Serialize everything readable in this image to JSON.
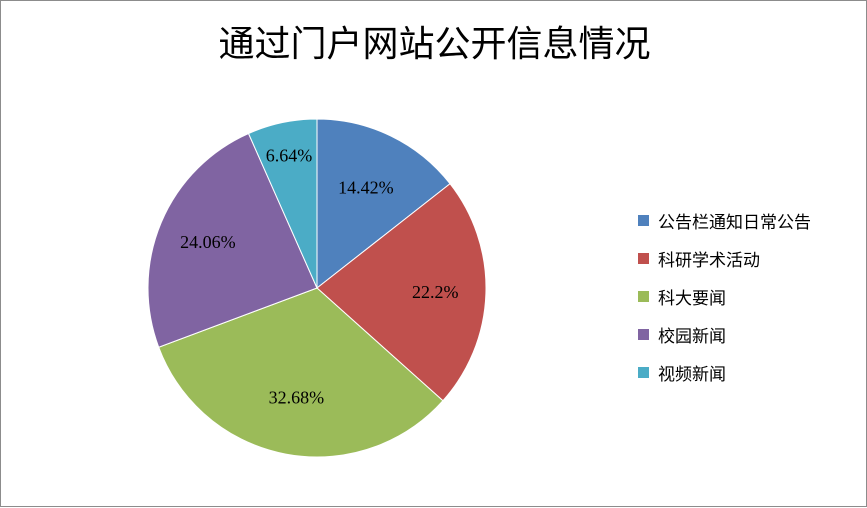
{
  "chart_data": {
    "type": "pie",
    "title": "通过门户网站公开信息情况",
    "categories": [
      "公告栏通知日常公告",
      "科研学术活动",
      "科大要闻",
      "校园新闻",
      "视频新闻"
    ],
    "values": [
      14.42,
      22.2,
      32.68,
      24.06,
      6.64
    ],
    "data_labels": [
      "14.42%",
      "22.2%",
      "32.68%",
      "24.06%",
      "6.64%"
    ],
    "colors": [
      "#4f81bd",
      "#c0504d",
      "#9bbb59",
      "#8064a2",
      "#4bacc6"
    ],
    "legend_position": "right",
    "start_angle": "12 o'clock",
    "direction": "clockwise"
  }
}
